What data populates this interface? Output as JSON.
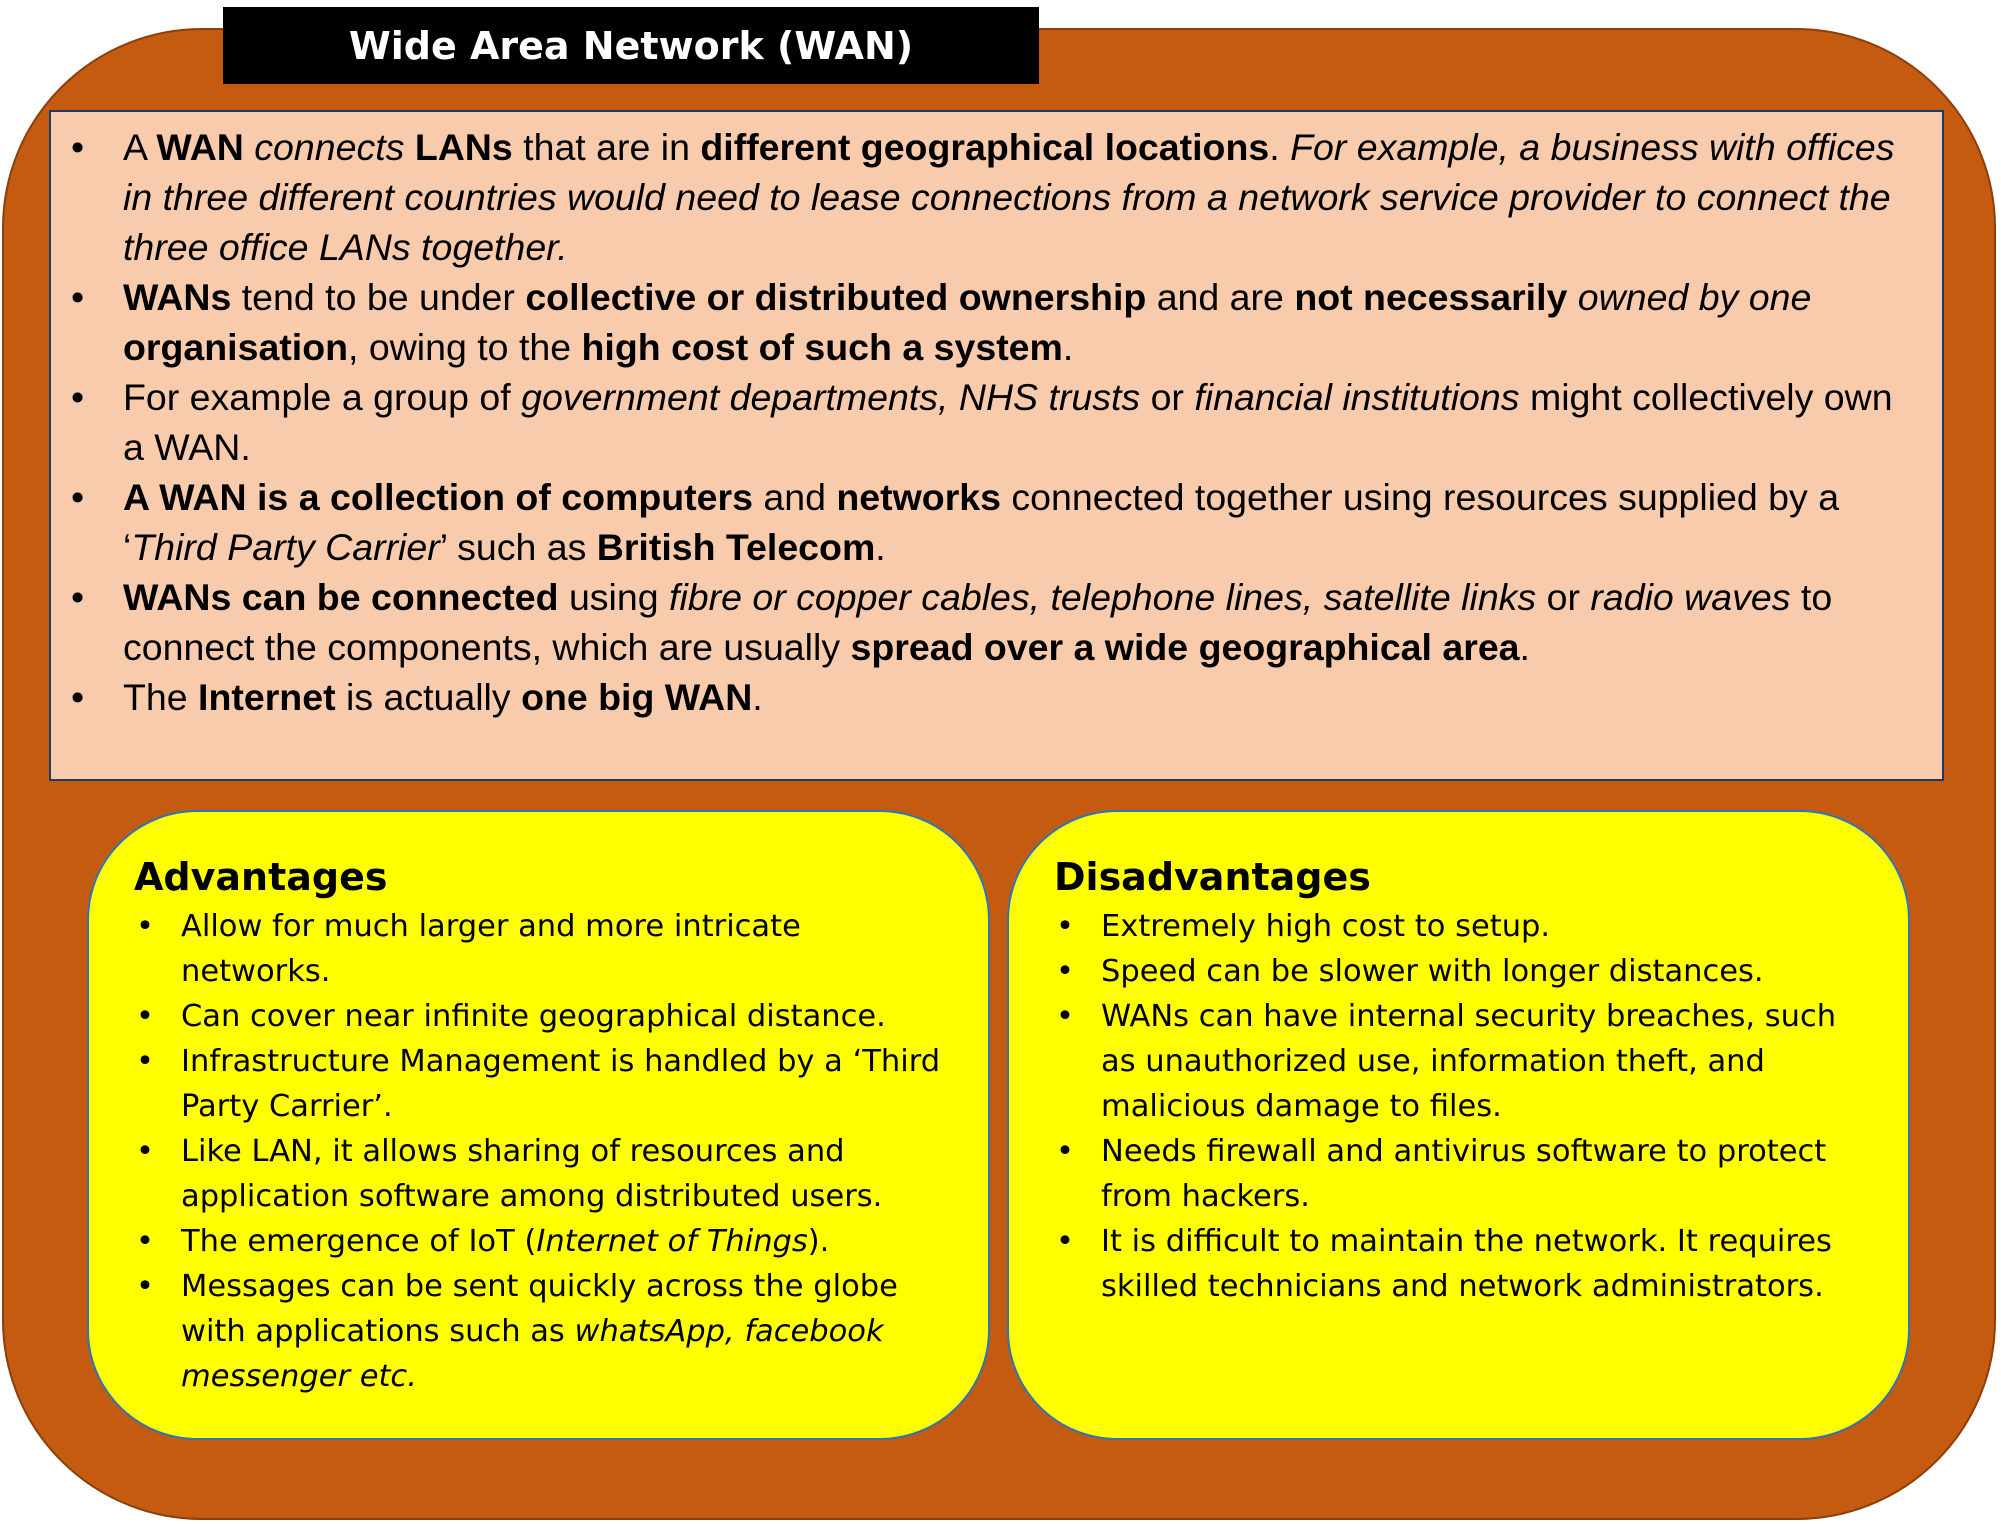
{
  "title": "Wide Area Network (WAN)",
  "info": [
    {
      "segments": [
        {
          "t": "A "
        },
        {
          "t": "WAN",
          "b": true
        },
        {
          "t": " "
        },
        {
          "t": "connects",
          "i": true
        },
        {
          "t": " "
        },
        {
          "t": "LANs",
          "b": true
        },
        {
          "t": " that are in "
        },
        {
          "t": "different geographical locations",
          "b": true
        },
        {
          "t": ". "
        },
        {
          "t": "For example, a business with offices in three different countries would need to lease connections from a network service provider to connect the three office LANs together.",
          "i": true
        }
      ]
    },
    {
      "segments": [
        {
          "t": "WANs",
          "b": true
        },
        {
          "t": " tend to be under "
        },
        {
          "t": "collective or distributed ownership",
          "b": true
        },
        {
          "t": " and are "
        },
        {
          "t": "not necessarily",
          "b": true
        },
        {
          "t": " "
        },
        {
          "t": "owned by one",
          "i": true
        },
        {
          "t": " "
        },
        {
          "t": "organisation",
          "b": true
        },
        {
          "t": ", owing to the "
        },
        {
          "t": "high cost of such a system",
          "b": true
        },
        {
          "t": "."
        }
      ]
    },
    {
      "segments": [
        {
          "t": "For example a group of "
        },
        {
          "t": "government departments, NHS trusts",
          "i": true
        },
        {
          "t": " or "
        },
        {
          "t": "financial institutions",
          "i": true
        },
        {
          "t": " might collectively own a WAN."
        }
      ]
    },
    {
      "segments": [
        {
          "t": "A WAN is a collection of computers",
          "b": true
        },
        {
          "t": " and "
        },
        {
          "t": "networks",
          "b": true
        },
        {
          "t": " connected together using resources supplied by a ‘"
        },
        {
          "t": "Third Party Carrier",
          "i": true
        },
        {
          "t": "’ such as "
        },
        {
          "t": "British Telecom",
          "b": true
        },
        {
          "t": "."
        }
      ]
    },
    {
      "segments": [
        {
          "t": "WANs can be connected",
          "b": true
        },
        {
          "t": " using "
        },
        {
          "t": "fibre or copper cables, telephone lines, satellite links",
          "i": true
        },
        {
          "t": " or "
        },
        {
          "t": "radio waves",
          "i": true
        },
        {
          "t": " to connect the components, which are usually "
        },
        {
          "t": "spread over a wide geographical area",
          "b": true
        },
        {
          "t": "."
        }
      ]
    },
    {
      "segments": [
        {
          "t": "The "
        },
        {
          "t": "Internet",
          "b": true
        },
        {
          "t": " is actually "
        },
        {
          "t": "one big WAN",
          "b": true
        },
        {
          "t": "."
        }
      ]
    }
  ],
  "advantages": {
    "heading": "Advantages",
    "items": [
      {
        "segments": [
          {
            "t": "Allow for much larger and more intricate networks."
          }
        ]
      },
      {
        "segments": [
          {
            "t": "Can cover near infinite geographical distance."
          }
        ]
      },
      {
        "segments": [
          {
            "t": "Infrastructure Management is handled by a ‘Third Party Carrier’."
          }
        ]
      },
      {
        "segments": [
          {
            "t": "Like LAN, it allows sharing of resources and application software among distributed users."
          }
        ]
      },
      {
        "segments": [
          {
            "t": "The emergence of IoT ("
          },
          {
            "t": "Internet of Things",
            "i": true
          },
          {
            "t": ")."
          }
        ]
      },
      {
        "segments": [
          {
            "t": "Messages can be sent quickly across the globe with applications such as "
          },
          {
            "t": "whatsApp, facebook messenger etc.",
            "i": true
          }
        ]
      }
    ]
  },
  "disadvantages": {
    "heading": "Disadvantages",
    "items": [
      {
        "segments": [
          {
            "t": "Extremely high cost to setup."
          }
        ]
      },
      {
        "segments": [
          {
            "t": "Speed can be slower with longer distances."
          }
        ]
      },
      {
        "segments": [
          {
            "t": "WANs can have internal security breaches, such as unauthorized use, information theft, and malicious damage to files."
          }
        ]
      },
      {
        "segments": [
          {
            "t": "Needs firewall and antivirus software to protect from hackers."
          }
        ]
      },
      {
        "segments": [
          {
            "t": "It is difficult to maintain the network. It requires skilled technicians and network administrators."
          }
        ]
      }
    ]
  },
  "colors": {
    "outer": "#c55a11",
    "title_bg": "#000000",
    "info_bg": "#f8cbad",
    "panel_bg": "#ffff00",
    "panel_border": "#2e75b6"
  }
}
